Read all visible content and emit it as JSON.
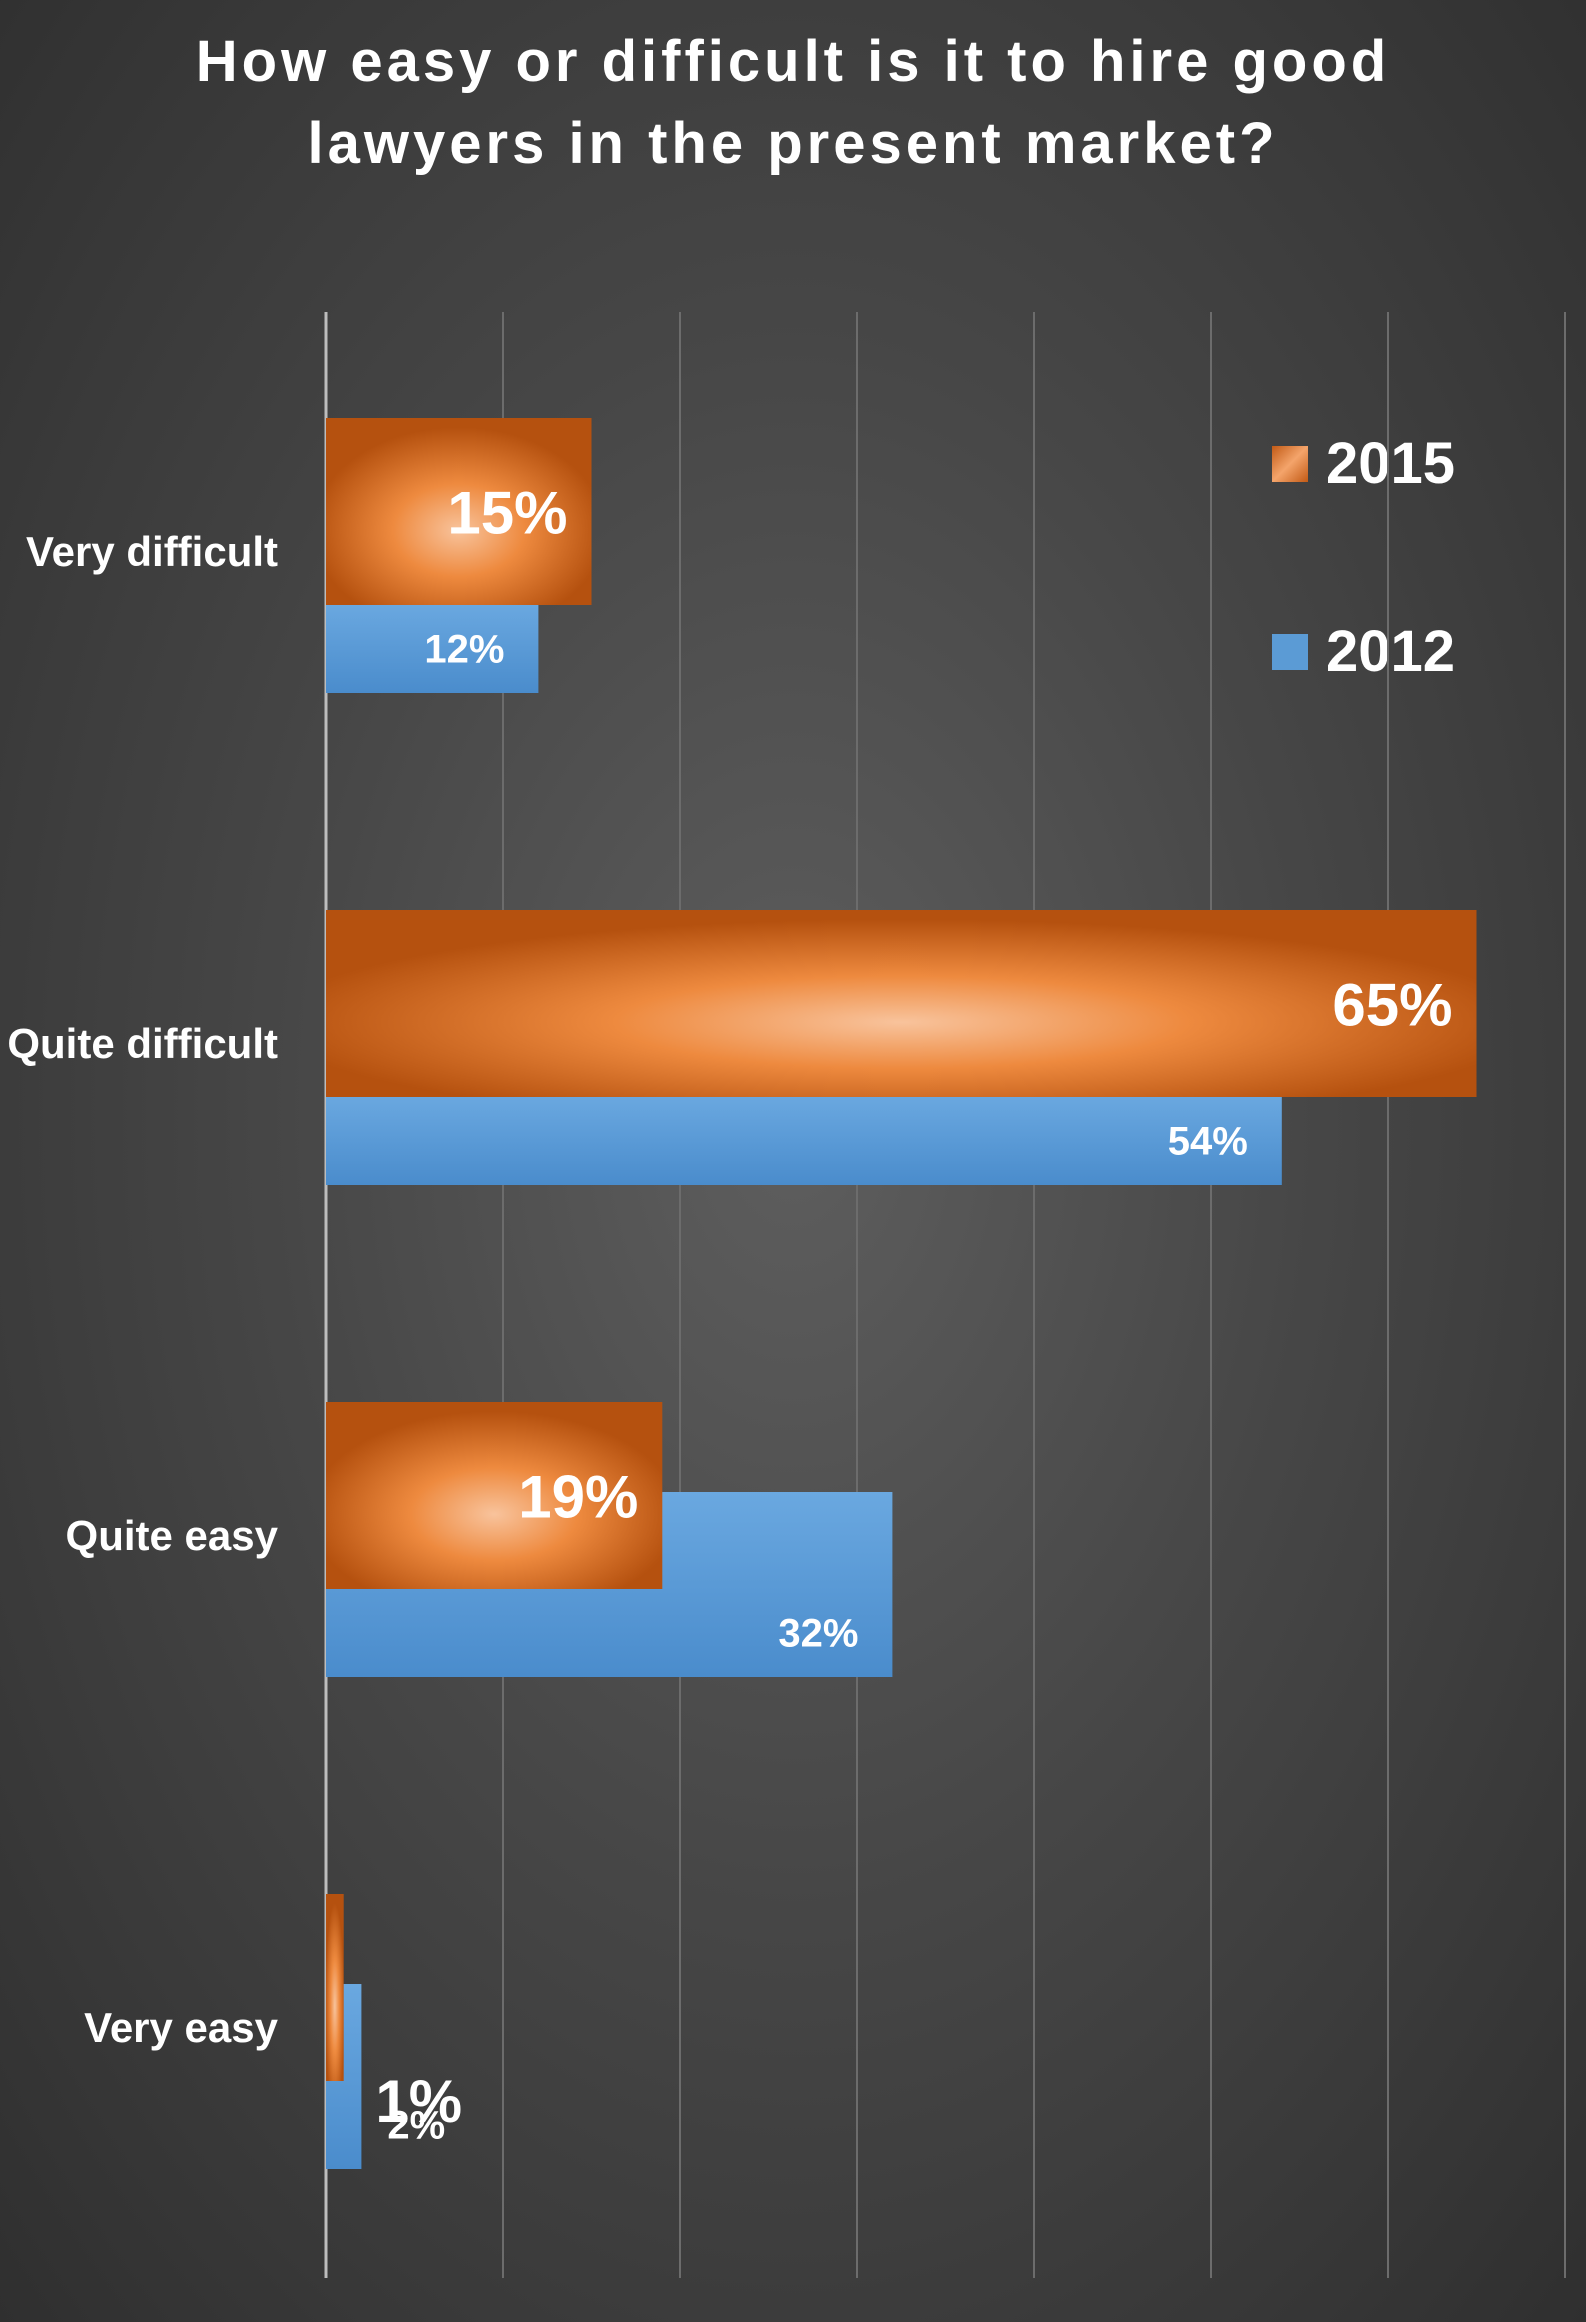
{
  "chart_data": {
    "type": "bar",
    "orientation": "horizontal",
    "title_lines": [
      "How easy or difficult is it to hire good",
      "lawyers in the present market?"
    ],
    "categories": [
      "Very difficult",
      "Quite difficult",
      "Quite easy",
      "Very easy"
    ],
    "series": [
      {
        "name": "2015",
        "values": [
          15,
          65,
          19,
          1
        ],
        "labels": [
          "15%",
          "65%",
          "19%",
          "1%"
        ],
        "color": "#ed7d31"
      },
      {
        "name": "2012",
        "values": [
          12,
          54,
          32,
          2
        ],
        "labels": [
          "12%",
          "54%",
          "32%",
          "2%"
        ],
        "color": "#5b9bd5"
      }
    ],
    "xlim": [
      0,
      70
    ],
    "grid": true,
    "legend": "top-right"
  }
}
